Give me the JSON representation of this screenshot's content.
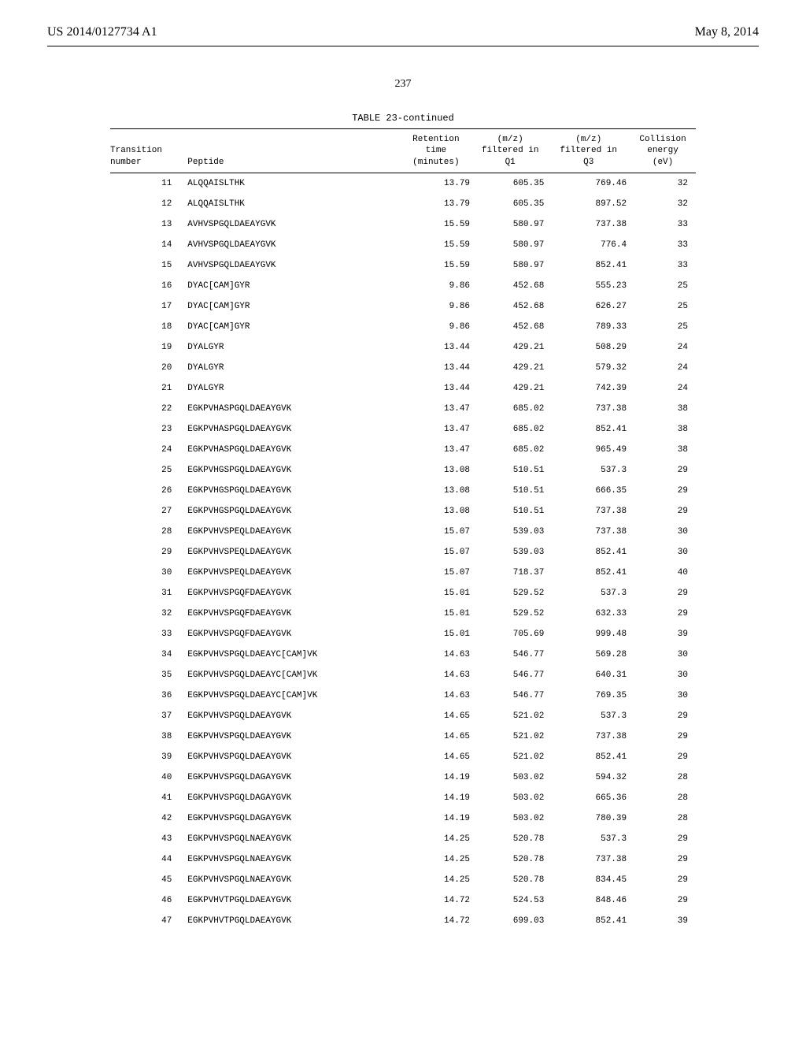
{
  "header": {
    "left": "US 2014/0127734 A1",
    "right": "May 8, 2014"
  },
  "pageNumber": "237",
  "table": {
    "caption": "TABLE 23-continued",
    "columns": {
      "transition": {
        "line1": "Transition",
        "line2": "number"
      },
      "peptide": {
        "line1": "Peptide"
      },
      "retention": {
        "line1": "Retention",
        "line2": "time",
        "line3": "(minutes)"
      },
      "q1": {
        "line1": "(m/z)",
        "line2": "filtered in",
        "line3": "Q1"
      },
      "q3": {
        "line1": "(m/z)",
        "line2": "filtered in",
        "line3": "Q3"
      },
      "collision": {
        "line1": "Collision",
        "line2": "energy",
        "line3": "(eV)"
      }
    },
    "rows": [
      {
        "transition": "11",
        "peptide": "ALQQAISLTHK",
        "retention": "13.79",
        "q1": "605.35",
        "q3": "769.46",
        "collision": "32"
      },
      {
        "transition": "12",
        "peptide": "ALQQAISLTHK",
        "retention": "13.79",
        "q1": "605.35",
        "q3": "897.52",
        "collision": "32"
      },
      {
        "transition": "13",
        "peptide": "AVHVSPGQLDAEAYGVK",
        "retention": "15.59",
        "q1": "580.97",
        "q3": "737.38",
        "collision": "33"
      },
      {
        "transition": "14",
        "peptide": "AVHVSPGQLDAEAYGVK",
        "retention": "15.59",
        "q1": "580.97",
        "q3": "776.4",
        "collision": "33"
      },
      {
        "transition": "15",
        "peptide": "AVHVSPGQLDAEAYGVK",
        "retention": "15.59",
        "q1": "580.97",
        "q3": "852.41",
        "collision": "33"
      },
      {
        "transition": "16",
        "peptide": "DYAC[CAM]GYR",
        "retention": "9.86",
        "q1": "452.68",
        "q3": "555.23",
        "collision": "25"
      },
      {
        "transition": "17",
        "peptide": "DYAC[CAM]GYR",
        "retention": "9.86",
        "q1": "452.68",
        "q3": "626.27",
        "collision": "25"
      },
      {
        "transition": "18",
        "peptide": "DYAC[CAM]GYR",
        "retention": "9.86",
        "q1": "452.68",
        "q3": "789.33",
        "collision": "25"
      },
      {
        "transition": "19",
        "peptide": "DYALGYR",
        "retention": "13.44",
        "q1": "429.21",
        "q3": "508.29",
        "collision": "24"
      },
      {
        "transition": "20",
        "peptide": "DYALGYR",
        "retention": "13.44",
        "q1": "429.21",
        "q3": "579.32",
        "collision": "24"
      },
      {
        "transition": "21",
        "peptide": "DYALGYR",
        "retention": "13.44",
        "q1": "429.21",
        "q3": "742.39",
        "collision": "24"
      },
      {
        "transition": "22",
        "peptide": "EGKPVHASPGQLDAEAYGVK",
        "retention": "13.47",
        "q1": "685.02",
        "q3": "737.38",
        "collision": "38"
      },
      {
        "transition": "23",
        "peptide": "EGKPVHASPGQLDAEAYGVK",
        "retention": "13.47",
        "q1": "685.02",
        "q3": "852.41",
        "collision": "38"
      },
      {
        "transition": "24",
        "peptide": "EGKPVHASPGQLDAEAYGVK",
        "retention": "13.47",
        "q1": "685.02",
        "q3": "965.49",
        "collision": "38"
      },
      {
        "transition": "25",
        "peptide": "EGKPVHGSPGQLDAEAYGVK",
        "retention": "13.08",
        "q1": "510.51",
        "q3": "537.3",
        "collision": "29"
      },
      {
        "transition": "26",
        "peptide": "EGKPVHGSPGQLDAEAYGVK",
        "retention": "13.08",
        "q1": "510.51",
        "q3": "666.35",
        "collision": "29"
      },
      {
        "transition": "27",
        "peptide": "EGKPVHGSPGQLDAEAYGVK",
        "retention": "13.08",
        "q1": "510.51",
        "q3": "737.38",
        "collision": "29"
      },
      {
        "transition": "28",
        "peptide": "EGKPVHVSPEQLDAEAYGVK",
        "retention": "15.07",
        "q1": "539.03",
        "q3": "737.38",
        "collision": "30"
      },
      {
        "transition": "29",
        "peptide": "EGKPVHVSPEQLDAEAYGVK",
        "retention": "15.07",
        "q1": "539.03",
        "q3": "852.41",
        "collision": "30"
      },
      {
        "transition": "30",
        "peptide": "EGKPVHVSPEQLDAEAYGVK",
        "retention": "15.07",
        "q1": "718.37",
        "q3": "852.41",
        "collision": "40"
      },
      {
        "transition": "31",
        "peptide": "EGKPVHVSPGQFDAEAYGVK",
        "retention": "15.01",
        "q1": "529.52",
        "q3": "537.3",
        "collision": "29"
      },
      {
        "transition": "32",
        "peptide": "EGKPVHVSPGQFDAEAYGVK",
        "retention": "15.01",
        "q1": "529.52",
        "q3": "632.33",
        "collision": "29"
      },
      {
        "transition": "33",
        "peptide": "EGKPVHVSPGQFDAEAYGVK",
        "retention": "15.01",
        "q1": "705.69",
        "q3": "999.48",
        "collision": "39"
      },
      {
        "transition": "34",
        "peptide": "EGKPVHVSPGQLDAEAYC[CAM]VK",
        "retention": "14.63",
        "q1": "546.77",
        "q3": "569.28",
        "collision": "30"
      },
      {
        "transition": "35",
        "peptide": "EGKPVHVSPGQLDAEAYC[CAM]VK",
        "retention": "14.63",
        "q1": "546.77",
        "q3": "640.31",
        "collision": "30"
      },
      {
        "transition": "36",
        "peptide": "EGKPVHVSPGQLDAEAYC[CAM]VK",
        "retention": "14.63",
        "q1": "546.77",
        "q3": "769.35",
        "collision": "30"
      },
      {
        "transition": "37",
        "peptide": "EGKPVHVSPGQLDAEAYGVK",
        "retention": "14.65",
        "q1": "521.02",
        "q3": "537.3",
        "collision": "29"
      },
      {
        "transition": "38",
        "peptide": "EGKPVHVSPGQLDAEAYGVK",
        "retention": "14.65",
        "q1": "521.02",
        "q3": "737.38",
        "collision": "29"
      },
      {
        "transition": "39",
        "peptide": "EGKPVHVSPGQLDAEAYGVK",
        "retention": "14.65",
        "q1": "521.02",
        "q3": "852.41",
        "collision": "29"
      },
      {
        "transition": "40",
        "peptide": "EGKPVHVSPGQLDAGAYGVK",
        "retention": "14.19",
        "q1": "503.02",
        "q3": "594.32",
        "collision": "28"
      },
      {
        "transition": "41",
        "peptide": "EGKPVHVSPGQLDAGAYGVK",
        "retention": "14.19",
        "q1": "503.02",
        "q3": "665.36",
        "collision": "28"
      },
      {
        "transition": "42",
        "peptide": "EGKPVHVSPGQLDAGAYGVK",
        "retention": "14.19",
        "q1": "503.02",
        "q3": "780.39",
        "collision": "28"
      },
      {
        "transition": "43",
        "peptide": "EGKPVHVSPGQLNAEAYGVK",
        "retention": "14.25",
        "q1": "520.78",
        "q3": "537.3",
        "collision": "29"
      },
      {
        "transition": "44",
        "peptide": "EGKPVHVSPGQLNAEAYGVK",
        "retention": "14.25",
        "q1": "520.78",
        "q3": "737.38",
        "collision": "29"
      },
      {
        "transition": "45",
        "peptide": "EGKPVHVSPGQLNAEAYGVK",
        "retention": "14.25",
        "q1": "520.78",
        "q3": "834.45",
        "collision": "29"
      },
      {
        "transition": "46",
        "peptide": "EGKPVHVTPGQLDAEAYGVK",
        "retention": "14.72",
        "q1": "524.53",
        "q3": "848.46",
        "collision": "29"
      },
      {
        "transition": "47",
        "peptide": "EGKPVHVTPGQLDAEAYGVK",
        "retention": "14.72",
        "q1": "699.03",
        "q3": "852.41",
        "collision": "39"
      }
    ]
  }
}
